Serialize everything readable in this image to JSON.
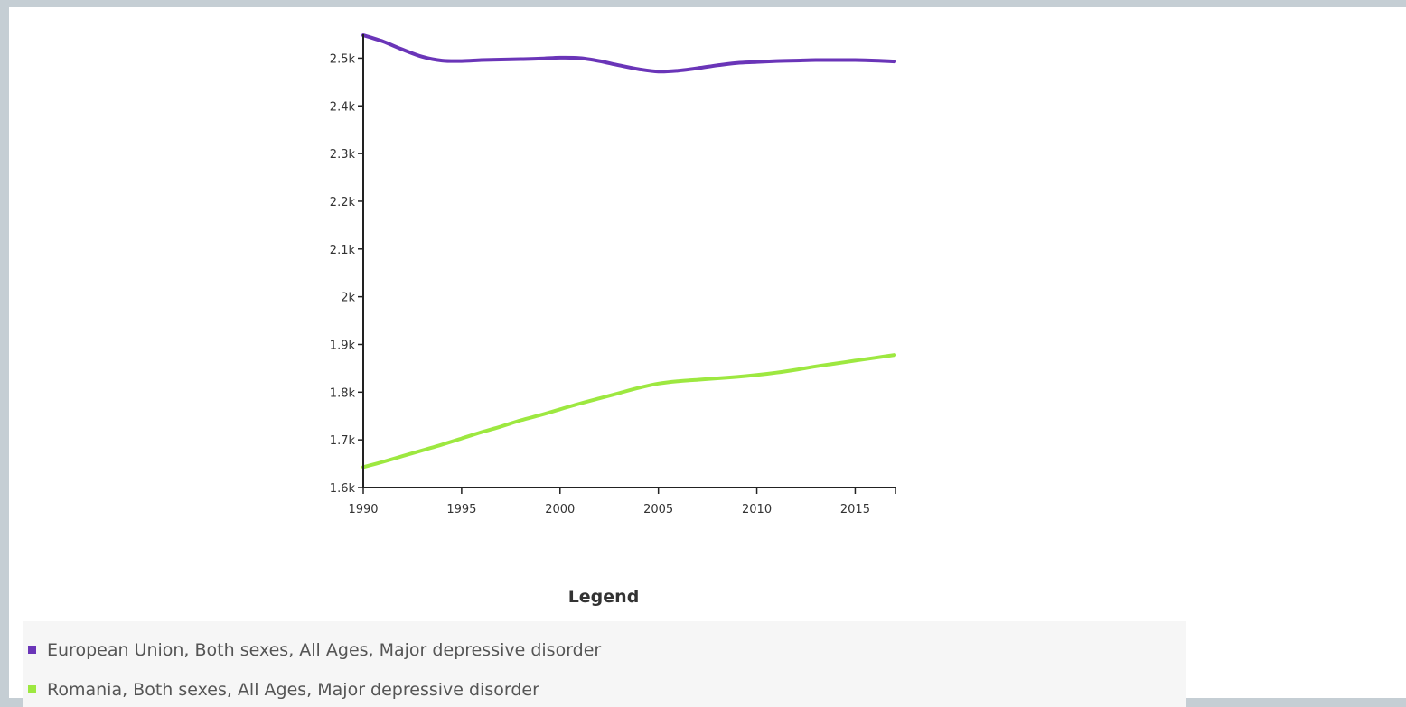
{
  "chart_data": {
    "type": "line",
    "title": "",
    "xlabel": "",
    "ylabel": "",
    "xlim": [
      1990,
      2017
    ],
    "ylim": [
      1600,
      2550
    ],
    "x_ticks": [
      1990,
      1995,
      2000,
      2005,
      2010,
      2015
    ],
    "x_tick_labels": [
      "1990",
      "1995",
      "2000",
      "2005",
      "2010",
      "2015"
    ],
    "y_ticks": [
      1600,
      1700,
      1800,
      1900,
      2000,
      2100,
      2200,
      2300,
      2400,
      2500
    ],
    "y_tick_labels": [
      "1.6k",
      "1.7k",
      "1.8k",
      "1.9k",
      "2k",
      "2.1k",
      "2.2k",
      "2.3k",
      "2.4k",
      "2.5k"
    ],
    "grid": false,
    "legend_position": "bottom",
    "series": [
      {
        "name": "European Union, Both sexes, All Ages, Major depressive disorder",
        "color": "#6a35b8",
        "x": [
          1990,
          1991,
          1992,
          1993,
          1994,
          1995,
          1996,
          1997,
          1998,
          1999,
          2000,
          2001,
          2002,
          2003,
          2004,
          2005,
          2006,
          2007,
          2008,
          2009,
          2010,
          2011,
          2012,
          2013,
          2014,
          2015,
          2016,
          2017
        ],
        "values": [
          2548,
          2535,
          2518,
          2503,
          2495,
          2494,
          2496,
          2497,
          2498,
          2499,
          2501,
          2500,
          2494,
          2485,
          2477,
          2472,
          2474,
          2479,
          2485,
          2490,
          2492,
          2494,
          2495,
          2496,
          2496,
          2496,
          2495,
          2493
        ]
      },
      {
        "name": "Romania, Both sexes, All Ages, Major depressive disorder",
        "color": "#9de840",
        "x": [
          1990,
          1991,
          1992,
          1993,
          1994,
          1995,
          1996,
          1997,
          1998,
          1999,
          2000,
          2001,
          2002,
          2003,
          2004,
          2005,
          2006,
          2007,
          2008,
          2009,
          2010,
          2011,
          2012,
          2013,
          2014,
          2015,
          2016,
          2017
        ],
        "values": [
          1643,
          1654,
          1666,
          1678,
          1690,
          1703,
          1716,
          1728,
          1741,
          1752,
          1764,
          1776,
          1787,
          1798,
          1809,
          1818,
          1823,
          1826,
          1829,
          1832,
          1836,
          1841,
          1847,
          1854,
          1860,
          1866,
          1872,
          1878
        ]
      }
    ]
  },
  "legend": {
    "title": "Legend"
  }
}
